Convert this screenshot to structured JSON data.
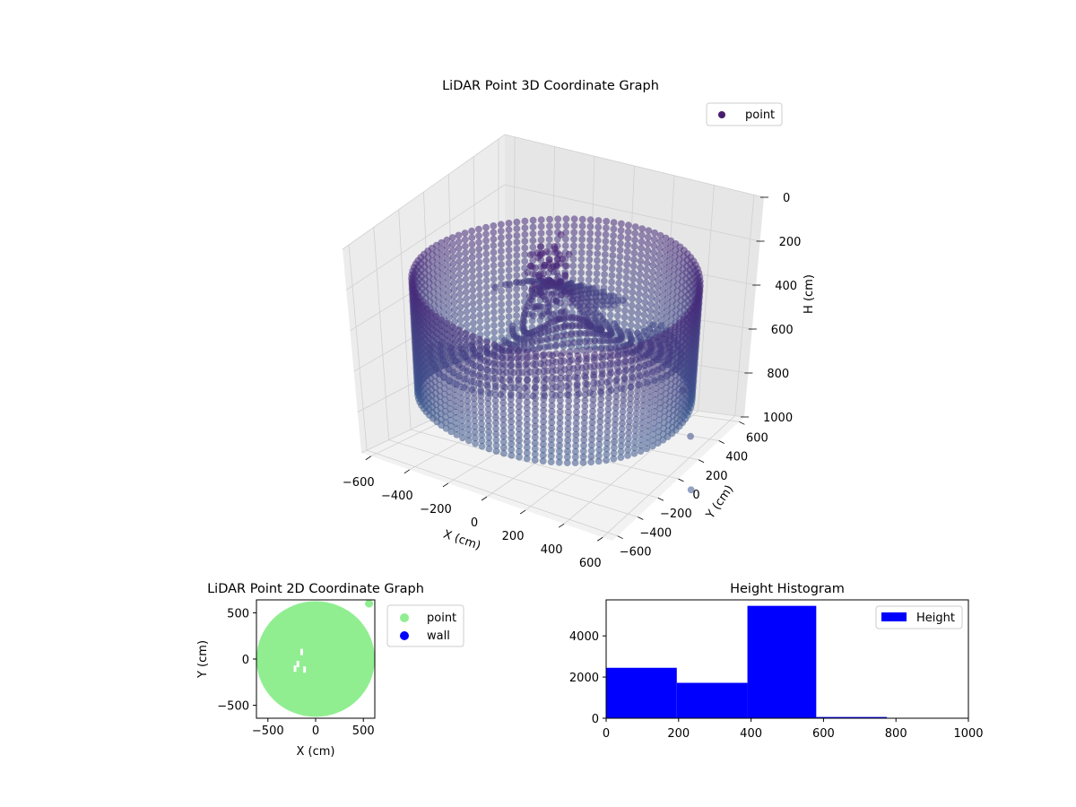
{
  "colors": {
    "point_3d": "#481c6e",
    "pane": "#f2f2f2",
    "point_2d": "#90ee90",
    "wall_2d": "#0000ff",
    "hist": "#0000ff"
  },
  "chart_data": [
    {
      "type": "scatter",
      "projection": "3d",
      "title": "LiDAR Point 3D Coordinate Graph",
      "xlabel": "X (cm)",
      "ylabel": "Y (cm)",
      "zlabel": "H (cm)",
      "xlim": [
        -650,
        650
      ],
      "ylim": [
        -650,
        650
      ],
      "zlim": [
        1000,
        0
      ],
      "x_ticks": [
        "−600",
        "−400",
        "−200",
        "0",
        "200",
        "400",
        "600"
      ],
      "y_ticks": [
        "−600",
        "−400",
        "−200",
        "0",
        "200",
        "400",
        "600"
      ],
      "z_ticks": [
        "0",
        "200",
        "400",
        "600",
        "800",
        "1000"
      ],
      "legend": {
        "label": "point",
        "placement": "top-right"
      },
      "shape": "cylindrical wall of points around the sensor with a partial floor/slope in the interior",
      "ring": {
        "radius": 620,
        "h_top": 380,
        "h_bottom": 780
      },
      "grid": true
    },
    {
      "type": "scatter",
      "title": "LiDAR Point 2D Coordinate Graph",
      "xlabel": "X (cm)",
      "ylabel": "Y (cm)",
      "xlim": [
        -620,
        620
      ],
      "ylim": [
        -640,
        640
      ],
      "x_ticks": [
        -500,
        0,
        500
      ],
      "y_ticks": [
        -500,
        0,
        500
      ],
      "legend": [
        "point",
        "wall"
      ],
      "legend_placement": "outside-right",
      "shape": "filled disk of points, radius ≈ 620",
      "outlier": [
        560,
        600
      ]
    },
    {
      "type": "bar",
      "subtype": "histogram",
      "title": "Height Histogram",
      "series": [
        {
          "name": "Height"
        }
      ],
      "bins": [
        [
          0,
          195
        ],
        [
          195,
          390
        ],
        [
          390,
          580
        ],
        [
          580,
          775
        ],
        [
          775,
          1000
        ]
      ],
      "values": [
        2450,
        1720,
        5460,
        60,
        0
      ],
      "xlim": [
        0,
        1000
      ],
      "ylim": [
        0,
        5750
      ],
      "x_ticks": [
        0,
        200,
        400,
        600,
        800,
        1000
      ],
      "y_ticks": [
        0,
        2000,
        4000
      ],
      "legend_placement": "top-right"
    }
  ]
}
